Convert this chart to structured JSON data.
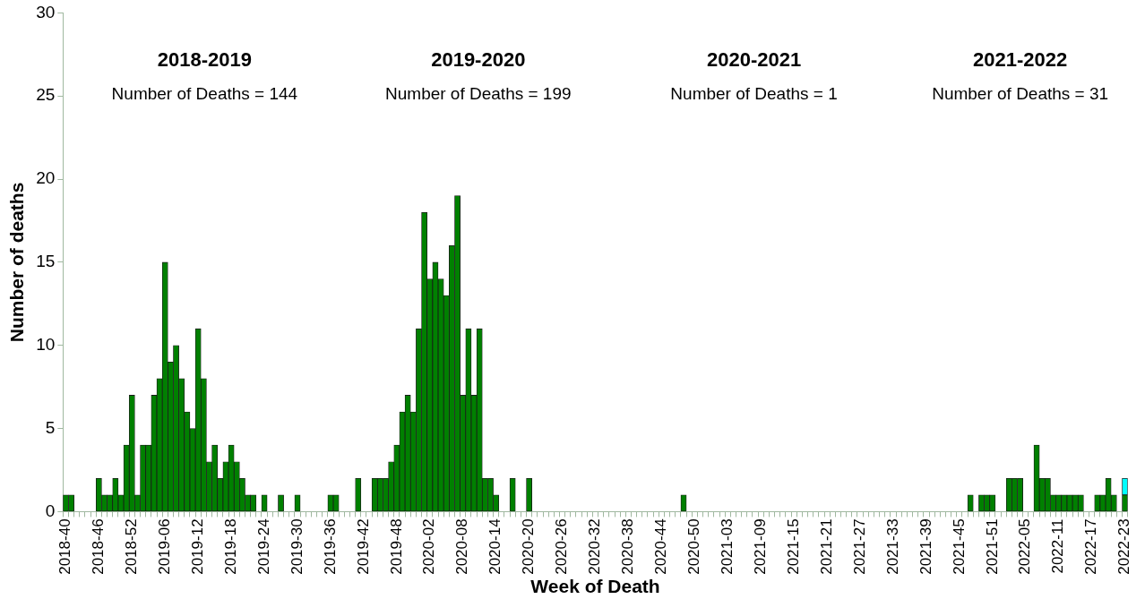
{
  "chart_data": {
    "type": "bar",
    "stacked": true,
    "xlabel": "Week of Death",
    "ylabel": "Number of deaths",
    "categories": [
      "2018-40",
      null,
      null,
      null,
      null,
      null,
      "2018-46",
      null,
      null,
      null,
      null,
      null,
      "2018-52",
      null,
      null,
      null,
      null,
      null,
      "2019-06",
      null,
      null,
      null,
      null,
      null,
      "2019-12",
      null,
      null,
      null,
      null,
      null,
      "2019-18",
      null,
      null,
      null,
      null,
      null,
      "2019-24",
      null,
      null,
      null,
      null,
      null,
      "2019-30",
      null,
      null,
      null,
      null,
      null,
      "2019-36",
      null,
      null,
      null,
      null,
      null,
      "2019-42",
      null,
      null,
      null,
      null,
      null,
      "2019-48",
      null,
      null,
      null,
      null,
      null,
      "2020-02",
      null,
      null,
      null,
      null,
      null,
      "2020-08",
      null,
      null,
      null,
      null,
      null,
      "2020-14",
      null,
      null,
      null,
      null,
      null,
      "2020-20",
      null,
      null,
      null,
      null,
      null,
      "2020-26",
      null,
      null,
      null,
      null,
      null,
      "2020-32",
      null,
      null,
      null,
      null,
      null,
      "2020-38",
      null,
      null,
      null,
      null,
      null,
      "2020-44",
      null,
      null,
      null,
      null,
      null,
      "2020-50",
      null,
      null,
      null,
      null,
      null,
      "2021-03",
      null,
      null,
      null,
      null,
      null,
      "2021-09",
      null,
      null,
      null,
      null,
      null,
      "2021-15",
      null,
      null,
      null,
      null,
      null,
      "2021-21",
      null,
      null,
      null,
      null,
      null,
      "2021-27",
      null,
      null,
      null,
      null,
      null,
      "2021-33",
      null,
      null,
      null,
      null,
      null,
      "2021-39",
      null,
      null,
      null,
      null,
      null,
      "2021-45",
      null,
      null,
      null,
      null,
      null,
      "2021-51",
      null,
      null,
      null,
      null,
      null,
      "2022-05",
      null,
      null,
      null,
      null,
      null,
      "2022-11",
      null,
      null,
      null,
      null,
      null,
      "2022-17",
      null,
      null,
      null,
      null,
      null,
      "2022-23"
    ],
    "series": [
      {
        "color": "#008000",
        "values": [
          1,
          1,
          0,
          0,
          0,
          0,
          2,
          1,
          1,
          2,
          1,
          4,
          7,
          1,
          4,
          4,
          7,
          8,
          15,
          9,
          10,
          8,
          6,
          5,
          11,
          8,
          3,
          4,
          2,
          3,
          4,
          3,
          2,
          1,
          1,
          0,
          1,
          0,
          0,
          1,
          0,
          0,
          1,
          0,
          0,
          0,
          0,
          0,
          1,
          1,
          0,
          0,
          0,
          2,
          0,
          0,
          2,
          2,
          2,
          3,
          4,
          6,
          7,
          6,
          11,
          18,
          14,
          15,
          14,
          13,
          16,
          19,
          7,
          11,
          7,
          11,
          2,
          2,
          1,
          0,
          0,
          2,
          0,
          0,
          2,
          0,
          0,
          0,
          0,
          0,
          0,
          0,
          0,
          0,
          0,
          0,
          0,
          0,
          0,
          0,
          0,
          0,
          0,
          0,
          0,
          0,
          0,
          0,
          0,
          0,
          0,
          0,
          1,
          0,
          0,
          0,
          0,
          0,
          0,
          0,
          0,
          0,
          0,
          0,
          0,
          0,
          0,
          0,
          0,
          0,
          0,
          0,
          0,
          0,
          0,
          0,
          0,
          0,
          0,
          0,
          0,
          0,
          0,
          0,
          0,
          0,
          0,
          0,
          0,
          0,
          0,
          0,
          0,
          0,
          0,
          0,
          0,
          0,
          0,
          0,
          0,
          0,
          0,
          0,
          1,
          0,
          1,
          1,
          1,
          0,
          0,
          2,
          2,
          2,
          0,
          0,
          4,
          2,
          2,
          1,
          1,
          1,
          1,
          1,
          1,
          0,
          0,
          1,
          1,
          2,
          1,
          0,
          1
        ]
      },
      {
        "color": "#00ffff",
        "values": [
          null,
          null,
          null,
          null,
          null,
          null,
          null,
          null,
          null,
          null,
          null,
          null,
          null,
          null,
          null,
          null,
          null,
          null,
          null,
          null,
          null,
          null,
          null,
          null,
          null,
          null,
          null,
          null,
          null,
          null,
          null,
          null,
          null,
          null,
          null,
          null,
          null,
          null,
          null,
          null,
          null,
          null,
          null,
          null,
          null,
          null,
          null,
          null,
          null,
          null,
          null,
          null,
          null,
          null,
          null,
          null,
          null,
          null,
          null,
          null,
          null,
          null,
          null,
          null,
          null,
          null,
          null,
          null,
          null,
          null,
          null,
          null,
          null,
          null,
          null,
          null,
          null,
          null,
          null,
          null,
          null,
          null,
          null,
          null,
          null,
          null,
          null,
          null,
          null,
          null,
          null,
          null,
          null,
          null,
          null,
          null,
          null,
          null,
          null,
          null,
          null,
          null,
          null,
          null,
          null,
          null,
          null,
          null,
          null,
          null,
          null,
          null,
          null,
          null,
          null,
          null,
          null,
          null,
          null,
          null,
          null,
          null,
          null,
          null,
          null,
          null,
          null,
          null,
          null,
          null,
          null,
          null,
          null,
          null,
          null,
          null,
          null,
          null,
          null,
          null,
          null,
          null,
          null,
          null,
          null,
          null,
          null,
          null,
          null,
          null,
          null,
          null,
          null,
          null,
          null,
          null,
          null,
          null,
          null,
          null,
          null,
          null,
          null,
          null,
          null,
          null,
          null,
          null,
          null,
          null,
          null,
          null,
          null,
          null,
          null,
          null,
          null,
          null,
          null,
          null,
          null,
          null,
          null,
          null,
          null,
          null,
          null,
          null,
          null,
          null,
          null,
          null,
          1
        ]
      }
    ],
    "ylim": [
      0,
      30
    ],
    "yticks": [
      0,
      5,
      10,
      15,
      20,
      25,
      30
    ],
    "grid": false,
    "legend": false,
    "annotations": [
      "2018-2019",
      "Number of Deaths = 144",
      "2019-2020",
      "Number of Deaths = 199",
      "2020-2021",
      "Number of Deaths = 1",
      "2021-2022",
      "Number of Deaths = 31"
    ]
  }
}
